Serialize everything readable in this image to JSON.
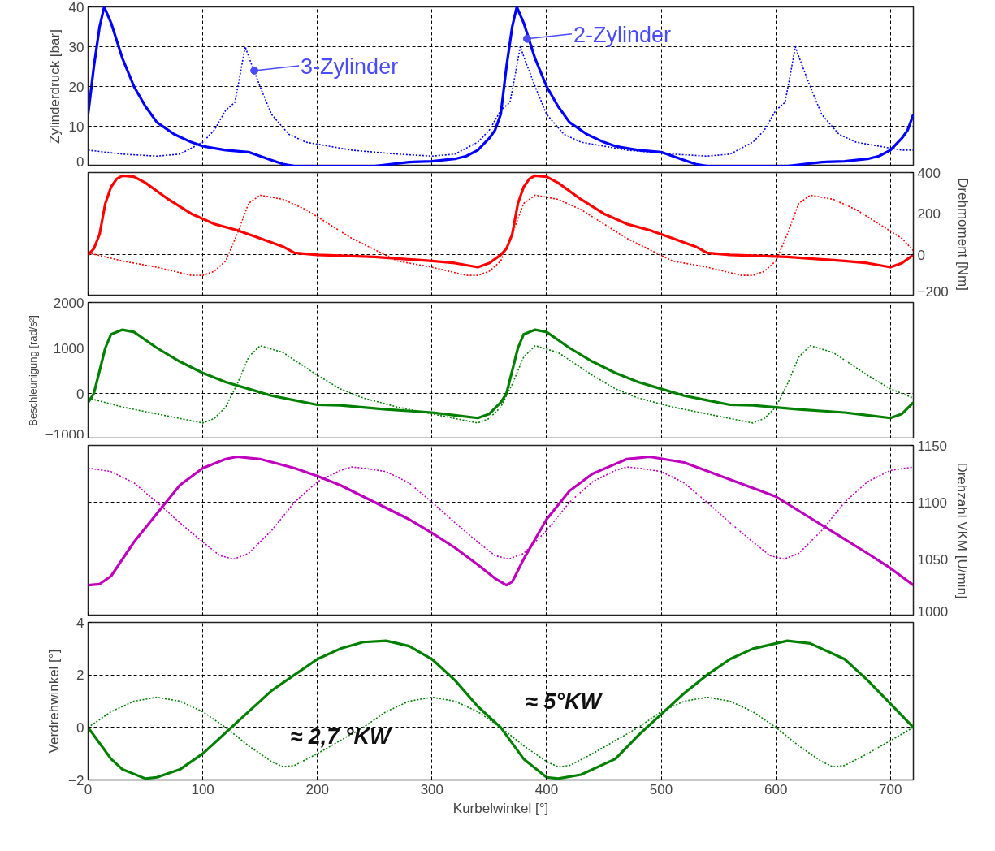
{
  "chart_data": [
    {
      "type": "line",
      "ylabel": "Zylinderdruck [bar]",
      "xlim": [
        0,
        720
      ],
      "xticks": [
        0,
        100,
        200,
        300,
        400,
        500,
        600,
        700
      ],
      "ylim": [
        0,
        40
      ],
      "yticks": [
        0,
        10,
        20,
        30,
        40
      ],
      "grid": true,
      "tick_labels": "y",
      "annotations": [
        {
          "text": "3-Zylinder",
          "x": 145,
          "y": 24
        },
        {
          "text": "2-Zylinder",
          "x": 383,
          "y": 32
        }
      ],
      "series": [
        {
          "color": "#0000ff",
          "line_style": "solid",
          "x": [
            0,
            5,
            10,
            14,
            20,
            30,
            40,
            50,
            60,
            75,
            90,
            100,
            120,
            140,
            150,
            160,
            170,
            180,
            250,
            280,
            300,
            320,
            330,
            340,
            350,
            355,
            360,
            365,
            370,
            374,
            380,
            390,
            400,
            410,
            420,
            435,
            450,
            460,
            480,
            500,
            510,
            520,
            530,
            540,
            610,
            640,
            660,
            680,
            690,
            700,
            710,
            715,
            720
          ],
          "values": [
            13,
            25,
            35,
            40,
            36,
            27,
            20,
            15,
            11,
            8,
            6,
            5,
            4,
            3.5,
            2.5,
            1.5,
            0.5,
            0,
            0,
            1,
            1.2,
            1.8,
            2.5,
            4,
            7,
            9,
            13,
            25,
            35,
            40,
            36,
            27,
            20,
            15,
            11,
            8,
            6,
            5,
            4,
            3.5,
            2.5,
            1.5,
            0.5,
            0,
            0,
            1,
            1.2,
            1.8,
            2.5,
            4,
            7,
            9,
            13
          ]
        },
        {
          "color": "#0000ff",
          "line_style": "dotted",
          "x": [
            0,
            30,
            60,
            80,
            100,
            110,
            120,
            128,
            132,
            137,
            142,
            150,
            160,
            175,
            190,
            210,
            230,
            270,
            300,
            320,
            340,
            350,
            360,
            368,
            372,
            377,
            382,
            390,
            400,
            415,
            430,
            450,
            470,
            510,
            540,
            560,
            580,
            590,
            600,
            608,
            612,
            617,
            622,
            630,
            640,
            655,
            670,
            690,
            710,
            720
          ],
          "values": [
            4,
            3,
            2.5,
            3,
            6,
            9,
            14,
            16,
            22,
            30,
            26,
            20,
            13,
            8,
            6,
            5,
            4,
            3,
            2.5,
            3,
            6,
            9,
            14,
            16,
            22,
            30,
            26,
            20,
            13,
            8,
            6,
            5,
            4,
            3,
            2.5,
            3,
            6,
            9,
            14,
            16,
            22,
            30,
            26,
            20,
            13,
            8,
            6,
            5,
            4,
            4
          ]
        }
      ]
    },
    {
      "type": "line",
      "y2label": "Drehmoment [Nm]",
      "xlim": [
        0,
        720
      ],
      "xticks": [
        0,
        100,
        200,
        300,
        400,
        500,
        600,
        700
      ],
      "y2lim": [
        -200,
        400
      ],
      "y2ticks": [
        -200,
        0,
        200,
        400
      ],
      "grid": true,
      "tick_labels": "y",
      "series": [
        {
          "color": "#ff0000",
          "line_style": "solid",
          "axis": "y2",
          "x": [
            0,
            5,
            10,
            15,
            20,
            25,
            30,
            40,
            50,
            70,
            90,
            110,
            130,
            150,
            170,
            180,
            200,
            250,
            300,
            320,
            340,
            350,
            360,
            365,
            370,
            375,
            380,
            385,
            390,
            400,
            410,
            430,
            450,
            470,
            490,
            510,
            530,
            540,
            560,
            610,
            660,
            680,
            700,
            710,
            720
          ],
          "values": [
            0,
            30,
            100,
            250,
            330,
            370,
            385,
            380,
            350,
            270,
            200,
            150,
            120,
            80,
            40,
            10,
            0,
            -10,
            -30,
            -40,
            -60,
            -40,
            0,
            30,
            100,
            250,
            330,
            370,
            385,
            380,
            350,
            270,
            200,
            150,
            120,
            80,
            40,
            10,
            0,
            -10,
            -30,
            -40,
            -60,
            -40,
            0
          ]
        },
        {
          "color": "#ff0000",
          "line_style": "dotted",
          "axis": "y2",
          "x": [
            0,
            30,
            60,
            90,
            100,
            110,
            120,
            130,
            140,
            150,
            170,
            190,
            210,
            230,
            270,
            300,
            330,
            340,
            350,
            360,
            370,
            380,
            390,
            410,
            430,
            450,
            470,
            510,
            540,
            570,
            580,
            590,
            600,
            610,
            620,
            630,
            650,
            670,
            690,
            710,
            720
          ],
          "values": [
            10,
            -30,
            -60,
            -100,
            -100,
            -80,
            -30,
            100,
            250,
            290,
            270,
            220,
            150,
            80,
            -30,
            -60,
            -100,
            -100,
            -80,
            -30,
            100,
            250,
            290,
            270,
            220,
            150,
            80,
            -30,
            -60,
            -100,
            -100,
            -80,
            -30,
            100,
            250,
            290,
            270,
            220,
            150,
            80,
            20
          ]
        }
      ]
    },
    {
      "type": "line",
      "ylabel": "Beschleunigung [rad/s²]",
      "xlim": [
        0,
        720
      ],
      "xticks": [
        0,
        100,
        200,
        300,
        400,
        500,
        600,
        700
      ],
      "ylim": [
        -1000,
        2000
      ],
      "yticks": [
        -1000,
        0,
        1000,
        2000
      ],
      "grid": true,
      "tick_labels": "y",
      "series": [
        {
          "color": "#008000",
          "line_style": "solid",
          "x": [
            0,
            5,
            10,
            15,
            20,
            30,
            40,
            60,
            80,
            100,
            120,
            140,
            160,
            180,
            200,
            220,
            260,
            300,
            320,
            340,
            350,
            360,
            365,
            370,
            375,
            380,
            390,
            400,
            420,
            440,
            460,
            480,
            500,
            520,
            540,
            560,
            580,
            620,
            660,
            680,
            700,
            710,
            720
          ],
          "values": [
            -200,
            0,
            500,
            1000,
            1300,
            1400,
            1350,
            1000,
            700,
            450,
            250,
            100,
            -50,
            -150,
            -250,
            -260,
            -350,
            -420,
            -480,
            -540,
            -450,
            -200,
            0,
            500,
            1000,
            1300,
            1400,
            1350,
            1000,
            700,
            450,
            250,
            100,
            -50,
            -150,
            -250,
            -260,
            -350,
            -420,
            -480,
            -540,
            -450,
            -200
          ]
        },
        {
          "color": "#008000",
          "line_style": "dotted",
          "x": [
            0,
            30,
            60,
            90,
            100,
            110,
            120,
            130,
            140,
            150,
            170,
            200,
            220,
            240,
            270,
            300,
            330,
            340,
            350,
            360,
            370,
            380,
            390,
            410,
            440,
            460,
            480,
            510,
            540,
            570,
            580,
            590,
            600,
            610,
            620,
            630,
            650,
            680,
            700,
            720
          ],
          "values": [
            -100,
            -300,
            -450,
            -600,
            -650,
            -550,
            -300,
            200,
            800,
            1050,
            900,
            400,
            100,
            -100,
            -300,
            -450,
            -600,
            -650,
            -550,
            -300,
            200,
            800,
            1050,
            900,
            400,
            100,
            -100,
            -300,
            -450,
            -600,
            -650,
            -550,
            -300,
            200,
            800,
            1050,
            900,
            400,
            100,
            -100
          ]
        }
      ]
    },
    {
      "type": "line",
      "y2label": "Drehzahl VKM [U/min]",
      "xlim": [
        0,
        720
      ],
      "xticks": [
        0,
        100,
        200,
        300,
        400,
        500,
        600,
        700
      ],
      "y2lim": [
        1000,
        1150
      ],
      "y2ticks": [
        1000,
        1050,
        1100,
        1150
      ],
      "grid": true,
      "tick_labels": "y",
      "series": [
        {
          "color": "#bf00bf",
          "line_style": "solid",
          "axis": "y2",
          "x": [
            0,
            10,
            20,
            40,
            60,
            80,
            100,
            120,
            130,
            150,
            180,
            200,
            220,
            250,
            280,
            300,
            320,
            340,
            355,
            365,
            370,
            380,
            400,
            420,
            440,
            470,
            490,
            520,
            560,
            600,
            640,
            680,
            700,
            720
          ],
          "values": [
            1027,
            1028,
            1035,
            1065,
            1090,
            1115,
            1130,
            1138,
            1140,
            1138,
            1130,
            1123,
            1115,
            1100,
            1085,
            1073,
            1060,
            1045,
            1033,
            1027,
            1030,
            1050,
            1085,
            1110,
            1125,
            1138,
            1140,
            1135,
            1120,
            1105,
            1080,
            1055,
            1042,
            1027
          ]
        },
        {
          "color": "#bf00bf",
          "line_style": "dotted",
          "axis": "y2",
          "x": [
            0,
            20,
            40,
            60,
            80,
            100,
            115,
            127,
            140,
            160,
            180,
            200,
            220,
            230,
            240,
            260,
            280,
            300,
            320,
            340,
            355,
            367,
            380,
            400,
            420,
            440,
            460,
            470,
            480,
            500,
            520,
            540,
            560,
            580,
            595,
            607,
            620,
            640,
            660,
            680,
            700,
            720
          ],
          "values": [
            1130,
            1127,
            1117,
            1100,
            1082,
            1065,
            1053,
            1050,
            1055,
            1075,
            1100,
            1118,
            1128,
            1131,
            1130,
            1127,
            1117,
            1100,
            1082,
            1065,
            1053,
            1050,
            1055,
            1075,
            1100,
            1118,
            1128,
            1131,
            1130,
            1127,
            1117,
            1100,
            1082,
            1065,
            1053,
            1050,
            1055,
            1075,
            1100,
            1118,
            1128,
            1131
          ]
        }
      ]
    },
    {
      "type": "line",
      "xlabel": "Kurbelwinkel [°]",
      "ylabel": "Verdrehwinkel [°]",
      "xlim": [
        0,
        720
      ],
      "xticks": [
        0,
        100,
        200,
        300,
        400,
        500,
        600,
        700
      ],
      "ylim": [
        -2,
        4
      ],
      "yticks": [
        -2,
        0,
        2,
        4
      ],
      "grid": true,
      "annotations": [
        "≈ 2,7 °KW",
        "≈ 5°KW"
      ],
      "series": [
        {
          "color": "#008000",
          "line_style": "solid",
          "x": [
            0,
            10,
            20,
            30,
            50,
            60,
            80,
            100,
            120,
            140,
            160,
            180,
            200,
            220,
            240,
            260,
            280,
            300,
            320,
            340,
            360,
            380,
            400,
            410,
            430,
            460,
            480,
            500,
            520,
            540,
            560,
            580,
            610,
            630,
            660,
            680,
            700,
            720
          ],
          "values": [
            0,
            -0.6,
            -1.2,
            -1.6,
            -1.95,
            -1.9,
            -1.6,
            -1,
            -0.2,
            0.6,
            1.4,
            2.0,
            2.6,
            3.0,
            3.25,
            3.3,
            3.1,
            2.6,
            1.8,
            0.8,
            0,
            -1.2,
            -1.9,
            -1.95,
            -1.8,
            -1.2,
            -0.3,
            0.5,
            1.3,
            2.0,
            2.6,
            3.0,
            3.3,
            3.2,
            2.6,
            1.8,
            0.9,
            0
          ]
        },
        {
          "color": "#008000",
          "line_style": "dotted",
          "x": [
            0,
            20,
            40,
            60,
            80,
            100,
            120,
            140,
            160,
            170,
            180,
            200,
            220,
            240,
            260,
            280,
            300,
            320,
            340,
            360,
            380,
            400,
            410,
            420,
            440,
            460,
            480,
            500,
            520,
            540,
            560,
            580,
            600,
            620,
            640,
            650,
            660,
            680,
            700,
            720
          ],
          "values": [
            0,
            0.6,
            1.0,
            1.15,
            1.0,
            0.6,
            0,
            -0.7,
            -1.3,
            -1.5,
            -1.45,
            -1.0,
            -0.5,
            0,
            0.6,
            1.0,
            1.15,
            1.0,
            0.6,
            0,
            -0.7,
            -1.3,
            -1.5,
            -1.45,
            -1.0,
            -0.5,
            0,
            0.6,
            1.0,
            1.15,
            1.0,
            0.6,
            0,
            -0.7,
            -1.3,
            -1.5,
            -1.45,
            -1.0,
            -0.5,
            0
          ]
        }
      ]
    }
  ]
}
